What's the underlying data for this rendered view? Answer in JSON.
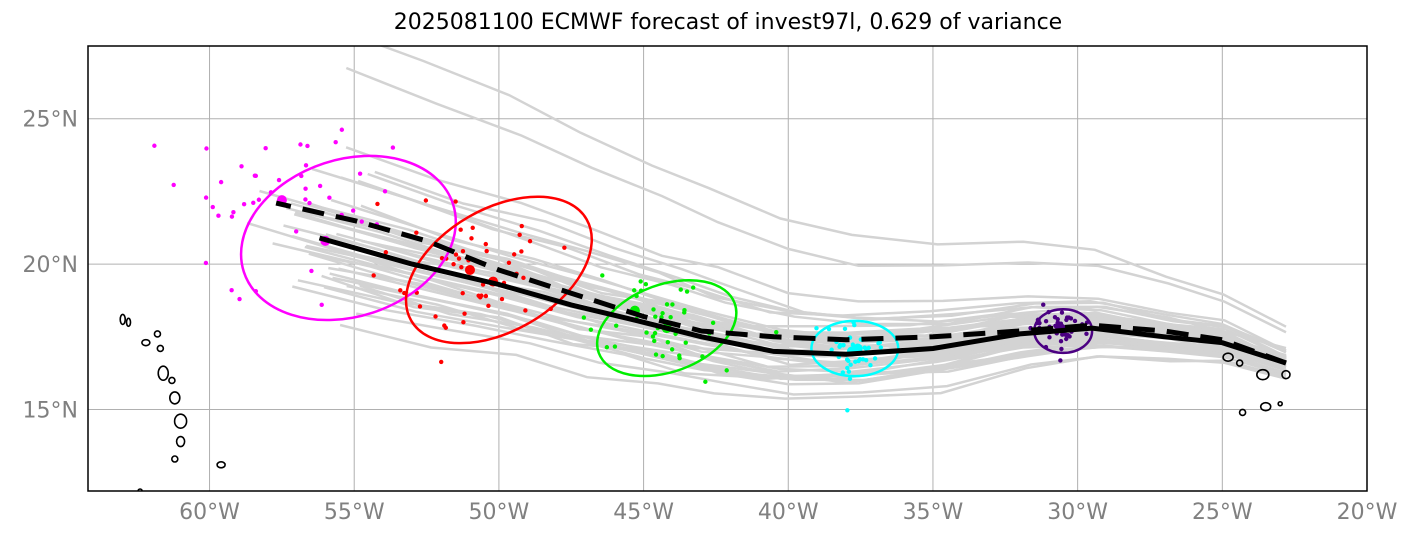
{
  "title": "2025081100 ECMWF forecast of invest97l, 0.629 of variance",
  "chart_data": {
    "type": "scatter",
    "xlim": [
      -64.2,
      -20
    ],
    "ylim": [
      12.2,
      27.5
    ],
    "grid": true,
    "x_tick_labels": [
      "60°W",
      "55°W",
      "50°W",
      "45°W",
      "40°W",
      "35°W",
      "30°W",
      "25°W",
      "20°W"
    ],
    "x_tick_values": [
      -60,
      -55,
      -50,
      -45,
      -40,
      -35,
      -30,
      -25,
      -20
    ],
    "y_tick_labels": [
      "15°N",
      "20°N",
      "25°N"
    ],
    "y_tick_values": [
      15,
      20,
      25
    ],
    "colors": {
      "ensemble": "#d3d3d3",
      "mean": "#000000",
      "coast": "#000000",
      "grid": "#b0b0b0"
    },
    "mean_track": {
      "solid": [
        [
          -22.8,
          16.6
        ],
        [
          -25,
          17.3
        ],
        [
          -27,
          17.5
        ],
        [
          -29.5,
          17.8
        ],
        [
          -32,
          17.6
        ],
        [
          -35,
          17.1
        ],
        [
          -38,
          16.9
        ],
        [
          -40.5,
          17.0
        ],
        [
          -43,
          17.5
        ],
        [
          -45,
          18.0
        ],
        [
          -47.5,
          18.6
        ],
        [
          -50,
          19.3
        ],
        [
          -53,
          20.0
        ],
        [
          -56.2,
          20.9
        ]
      ],
      "dashed": [
        [
          -22.8,
          16.6
        ],
        [
          -25,
          17.4
        ],
        [
          -27,
          17.7
        ],
        [
          -29.5,
          17.9
        ],
        [
          -32,
          17.7
        ],
        [
          -35,
          17.5
        ],
        [
          -38,
          17.4
        ],
        [
          -40.5,
          17.5
        ],
        [
          -43,
          17.7
        ],
        [
          -45,
          18.2
        ],
        [
          -47.5,
          19.0
        ],
        [
          -50,
          19.8
        ],
        [
          -52.5,
          20.8
        ],
        [
          -55,
          21.5
        ],
        [
          -57.7,
          22.1
        ]
      ]
    },
    "ellipses": [
      {
        "color": "#ff00ff",
        "cx": -55.2,
        "cy": 20.9,
        "rx": 3.8,
        "ry": 2.7,
        "angle": -18
      },
      {
        "color": "#ff0000",
        "cx": -50,
        "cy": 19.8,
        "rx": 3.5,
        "ry": 2.1,
        "angle": -30
      },
      {
        "color": "#00ee00",
        "cx": -44.2,
        "cy": 17.8,
        "rx": 2.5,
        "ry": 1.5,
        "angle": -20
      },
      {
        "color": "#00ffff",
        "cx": -37.7,
        "cy": 17.1,
        "rx": 1.5,
        "ry": 0.95,
        "angle": 0
      },
      {
        "color": "#4b0082",
        "cx": -30.5,
        "cy": 17.7,
        "rx": 1.0,
        "ry": 0.75,
        "angle": 0
      }
    ],
    "clusters": [
      {
        "color": "#ff00ff",
        "center": [
          -57.5,
          22.2
        ],
        "mean": [
          -56,
          20.8
        ],
        "n": 45,
        "spread": [
          2.1,
          1.5
        ]
      },
      {
        "color": "#ff0000",
        "center": [
          -51,
          19.8
        ],
        "mean": [
          -50.2,
          19.4
        ],
        "n": 50,
        "spread": [
          1.7,
          1.2
        ]
      },
      {
        "color": "#00ee00",
        "center": [
          -44.2,
          17.8
        ],
        "mean": [
          -45.3,
          18.4
        ],
        "n": 45,
        "spread": [
          1.2,
          0.8
        ]
      },
      {
        "color": "#00ffff",
        "center": [
          -37.8,
          17.0
        ],
        "mean": [
          -37.6,
          17.1
        ],
        "n": 40,
        "spread": [
          0.7,
          0.5
        ]
      },
      {
        "color": "#4b0082",
        "center": [
          -30.6,
          17.8
        ],
        "mean": [
          -30.6,
          17.8
        ],
        "n": 45,
        "spread": [
          0.45,
          0.35
        ]
      }
    ],
    "ensemble_members": 50
  }
}
